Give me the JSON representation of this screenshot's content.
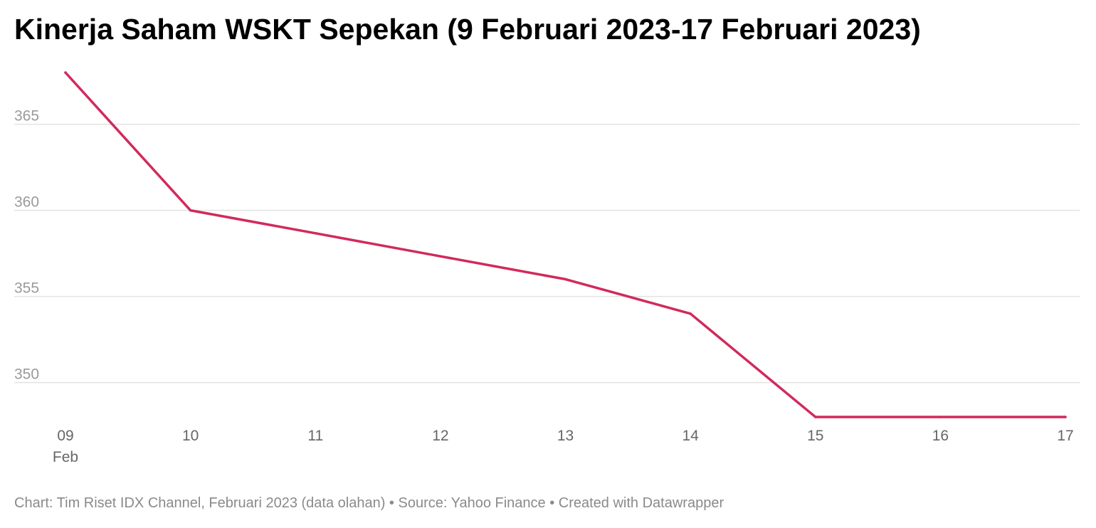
{
  "chart_data": {
    "type": "line",
    "title": "Kinerja Saham WSKT Sepekan (9 Februari 2023-17 Februari 2023)",
    "x": [
      9,
      10,
      11,
      12,
      13,
      14,
      15,
      16,
      17
    ],
    "x_tick_labels": [
      "09",
      "10",
      "11",
      "12",
      "13",
      "14",
      "15",
      "16",
      "17"
    ],
    "x_sublabel": "Feb",
    "series": [
      {
        "values": [
          368,
          360,
          358.67,
          357.33,
          356,
          354,
          348,
          348,
          348
        ],
        "color": "#d12a5c"
      }
    ],
    "y_ticks": [
      350,
      355,
      360,
      365
    ],
    "y_tick_labels": [
      "350",
      "355",
      "360",
      "365"
    ],
    "ylim": [
      348,
      368
    ],
    "grid": true,
    "xlabel": "",
    "ylabel": ""
  },
  "footer": {
    "text": "Chart: Tim Riset IDX Channel, Februari 2023 (data olahan) • Source: Yahoo Finance • Created with Datawrapper"
  },
  "colors": {
    "line": "#d12a5c",
    "grid": "#e3e3e3",
    "axis_text": "#9a9a9a"
  }
}
